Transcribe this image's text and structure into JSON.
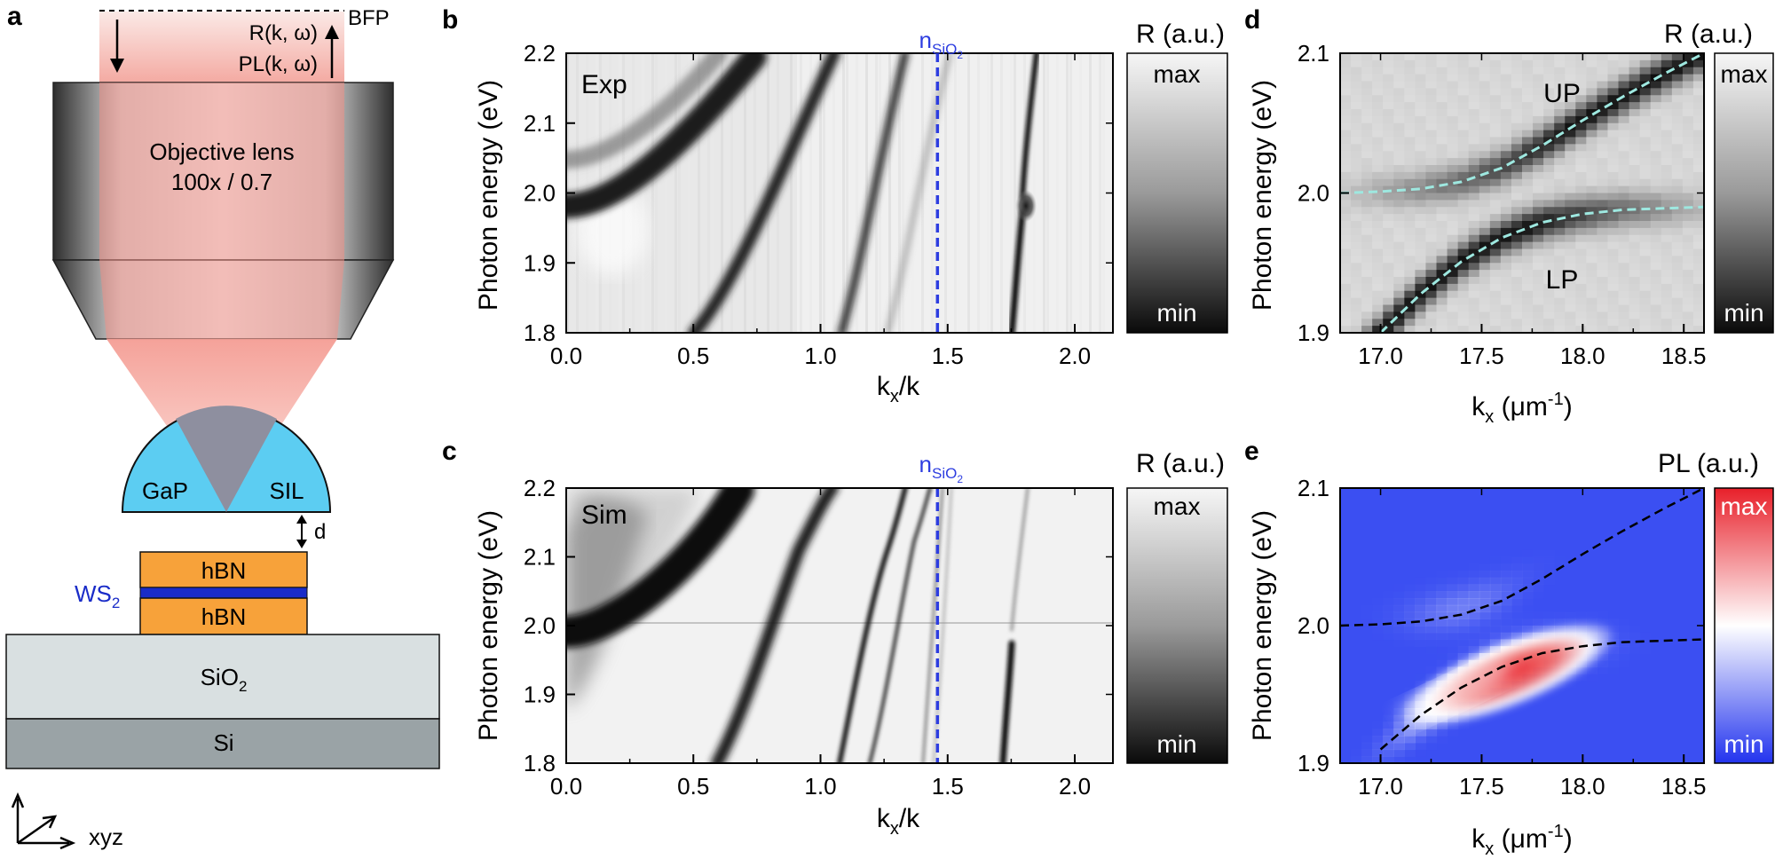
{
  "panel_letters": [
    "a",
    "b",
    "c",
    "d",
    "e"
  ],
  "colors": {
    "lens_beam": "#f4a49c",
    "sil": "#5ccdf2",
    "hbn": "#f7a23a",
    "ws2": "#1a2cc8",
    "sio2": "#d9e0e1",
    "si": "#9aa3a6",
    "nsio2_line": "#2d3de0",
    "dispersion_d": "#9ee8e0",
    "dispersion_e": "#000000"
  },
  "schematic": {
    "bfp": "BFP",
    "r_label": "R(k, ω)",
    "pl_label": "PL(k, ω)",
    "objective_line1": "Objective lens",
    "objective_line2": "100x / 0.7",
    "sil_left": "GaP",
    "sil_right": "SIL",
    "gap": "d",
    "hbn_top": "hBN",
    "hbn_bottom": "hBN",
    "ws2": "WS",
    "ws2_sub": "2",
    "sio2": "SiO",
    "sio2_sub": "2",
    "si": "Si",
    "axes": "xyz"
  },
  "chart_data": [
    {
      "panel": "b",
      "type": "heatmap",
      "label": "Exp",
      "xlabel": "k",
      "xlabel_sub": "x",
      "xlabel_rest": "/k",
      "ylabel": "Photon energy (eV)",
      "xlim": [
        0,
        2.15
      ],
      "ylim": [
        1.8,
        2.2
      ],
      "xticks": [
        "0.0",
        "0.5",
        "1.0",
        "1.5",
        "2.0"
      ],
      "xtick_values": [
        0,
        0.5,
        1.0,
        1.5,
        2.0
      ],
      "yticks": [
        "1.8",
        "1.9",
        "2.0",
        "2.1",
        "2.2"
      ],
      "ytick_values": [
        1.8,
        1.9,
        2.0,
        2.1,
        2.2
      ],
      "marker_label": "n",
      "marker_sub": "SiO",
      "marker_subsub": "2",
      "marker_x": 1.46,
      "colorbar_title": "R (a.u.)",
      "colorbar_max": "max",
      "colorbar_min": "min"
    },
    {
      "panel": "c",
      "type": "heatmap",
      "label": "Sim",
      "xlabel": "k",
      "xlabel_sub": "x",
      "xlabel_rest": "/k",
      "ylabel": "Photon energy (eV)",
      "xlim": [
        0,
        2.15
      ],
      "ylim": [
        1.8,
        2.2
      ],
      "xticks": [
        "0.0",
        "0.5",
        "1.0",
        "1.5",
        "2.0"
      ],
      "xtick_values": [
        0,
        0.5,
        1.0,
        1.5,
        2.0
      ],
      "yticks": [
        "1.8",
        "1.9",
        "2.0",
        "2.1",
        "2.2"
      ],
      "ytick_values": [
        1.8,
        1.9,
        2.0,
        2.1,
        2.2
      ],
      "marker_label": "n",
      "marker_sub": "SiO",
      "marker_subsub": "2",
      "marker_x": 1.46,
      "colorbar_title": "R (a.u.)",
      "colorbar_max": "max",
      "colorbar_min": "min"
    },
    {
      "panel": "d",
      "type": "heatmap",
      "xlabel": "k",
      "xlabel_sub": "x",
      "xlabel_rest": " (μm",
      "xlabel_sup": "-1",
      "xlabel_end": ")",
      "ylabel": "Photon energy (eV)",
      "xlim": [
        16.8,
        18.6
      ],
      "ylim": [
        1.9,
        2.1
      ],
      "xticks": [
        "17.0",
        "17.5",
        "18.0",
        "18.5"
      ],
      "xtick_values": [
        17.0,
        17.5,
        18.0,
        18.5
      ],
      "yticks": [
        "1.9",
        "2.0",
        "2.1"
      ],
      "ytick_values": [
        1.9,
        2.0,
        2.1
      ],
      "branch_upper": "UP",
      "branch_lower": "LP",
      "up_curve": {
        "x": [
          16.8,
          17.0,
          17.2,
          17.4,
          17.6,
          17.8,
          18.0,
          18.2,
          18.4,
          18.6
        ],
        "y": [
          2.0,
          2.001,
          2.003,
          2.008,
          2.018,
          2.034,
          2.052,
          2.069,
          2.085,
          2.1
        ]
      },
      "lp_curve": {
        "x": [
          17.0,
          17.2,
          17.4,
          17.6,
          17.8,
          18.0,
          18.2,
          18.4,
          18.6
        ],
        "y": [
          1.9,
          1.928,
          1.951,
          1.968,
          1.979,
          1.985,
          1.988,
          1.989,
          1.99
        ]
      },
      "colorbar_title": "R (a.u.)",
      "colorbar_max": "max",
      "colorbar_min": "min"
    },
    {
      "panel": "e",
      "type": "heatmap",
      "xlabel": "k",
      "xlabel_sub": "x",
      "xlabel_rest": " (μm",
      "xlabel_sup": "-1",
      "xlabel_end": ")",
      "ylabel": "Photon energy (eV)",
      "xlim": [
        16.8,
        18.6
      ],
      "ylim": [
        1.9,
        2.1
      ],
      "xticks": [
        "17.0",
        "17.5",
        "18.0",
        "18.5"
      ],
      "xtick_values": [
        17.0,
        17.5,
        18.0,
        18.5
      ],
      "yticks": [
        "1.9",
        "2.0",
        "2.1"
      ],
      "ytick_values": [
        1.9,
        2.0,
        2.1
      ],
      "up_curve": {
        "x": [
          16.8,
          17.0,
          17.2,
          17.4,
          17.6,
          17.8,
          18.0,
          18.2,
          18.4,
          18.6
        ],
        "y": [
          2.0,
          2.001,
          2.003,
          2.008,
          2.018,
          2.034,
          2.052,
          2.069,
          2.085,
          2.1
        ]
      },
      "lp_curve": {
        "x": [
          17.0,
          17.2,
          17.4,
          17.6,
          17.8,
          18.0,
          18.2,
          18.4,
          18.6
        ],
        "y": [
          1.91,
          1.935,
          1.955,
          1.97,
          1.98,
          1.985,
          1.988,
          1.989,
          1.99
        ]
      },
      "colorbar_title": "PL (a.u.)",
      "colorbar_max": "max",
      "colorbar_min": "min"
    }
  ]
}
